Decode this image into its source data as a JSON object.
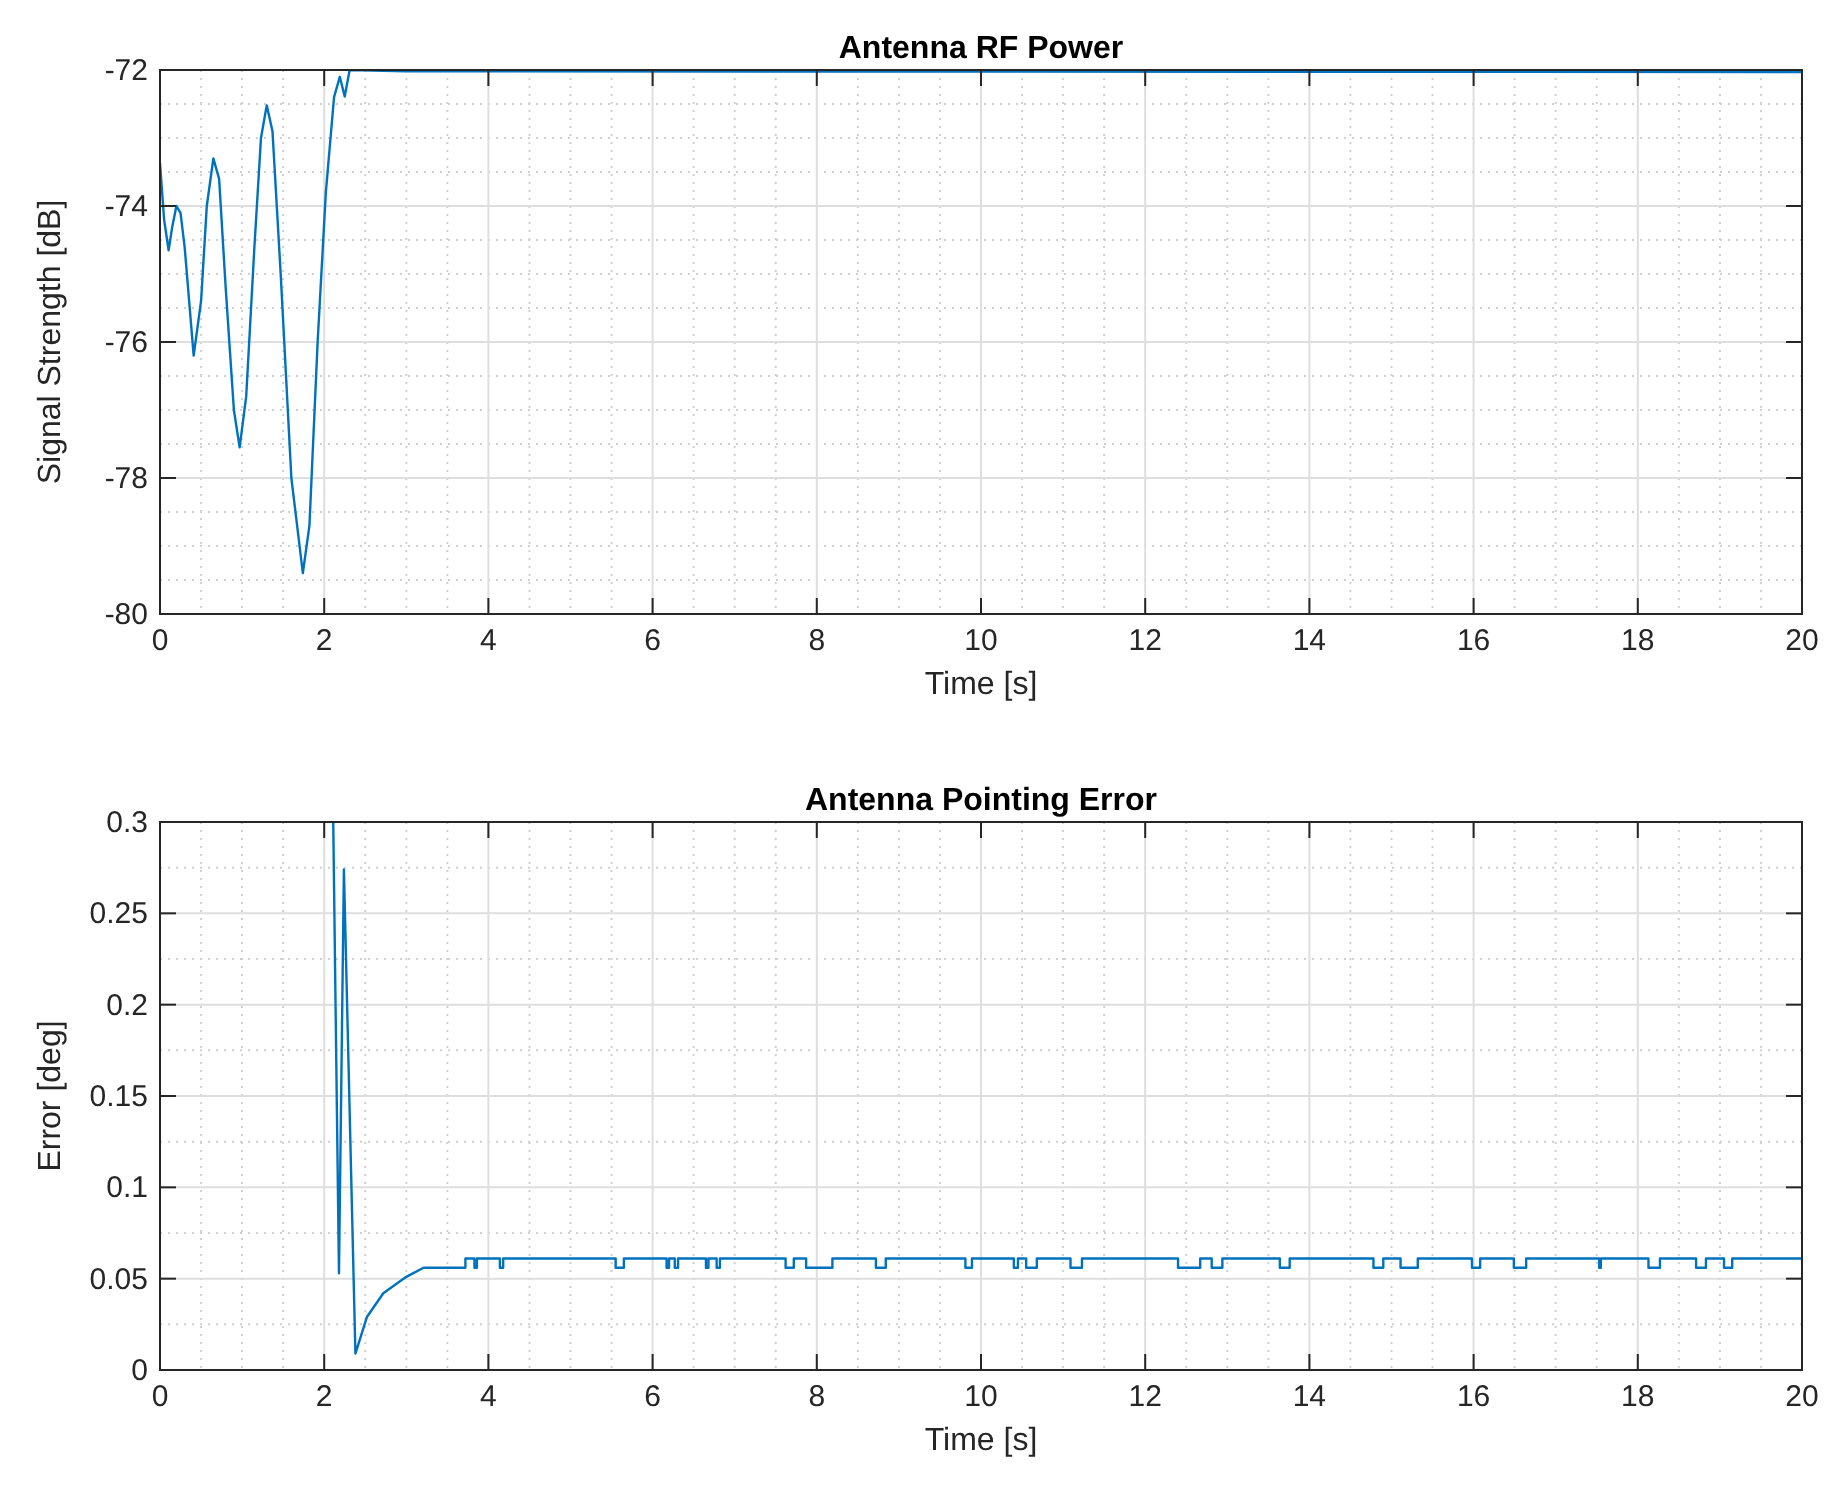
{
  "chart_data": [
    {
      "type": "line",
      "title": "Antenna RF Power",
      "xlabel": "Time [s]",
      "ylabel": "Signal Strength [dB]",
      "xlim": [
        0,
        20
      ],
      "xticks": [
        0,
        2,
        4,
        6,
        8,
        10,
        12,
        14,
        16,
        18,
        20
      ],
      "ylim": [
        -80,
        -72
      ],
      "yticks": [
        -80,
        -78,
        -76,
        -74,
        -72
      ],
      "grid": true,
      "series": [
        {
          "color": "#0072bd",
          "x": [
            0,
            0.05,
            0.105,
            0.15,
            0.2,
            0.25,
            0.3,
            0.41,
            0.5,
            0.57,
            0.65,
            0.72,
            0.8,
            0.9,
            0.97,
            1.05,
            1.15,
            1.23,
            1.3,
            1.37,
            1.47,
            1.6,
            1.74,
            1.82,
            1.92,
            2.02,
            2.12,
            2.19,
            2.25,
            2.31,
            3,
            20
          ],
          "values": [
            -73.37,
            -74.2,
            -74.65,
            -74.3,
            -74.0,
            -74.1,
            -74.6,
            -76.2,
            -75.4,
            -74.0,
            -73.3,
            -73.6,
            -75.2,
            -77.0,
            -77.55,
            -76.8,
            -74.6,
            -73.0,
            -72.52,
            -72.9,
            -75.0,
            -78.0,
            -79.4,
            -78.7,
            -76.0,
            -73.8,
            -72.4,
            -72.1,
            -72.39,
            -72.0,
            -72.02,
            -72.03
          ]
        }
      ]
    },
    {
      "type": "line",
      "title": "Antenna Pointing Error",
      "xlabel": "Time [s]",
      "ylabel": "Error [deg]",
      "xlim": [
        0,
        20
      ],
      "xticks": [
        0,
        2,
        4,
        6,
        8,
        10,
        12,
        14,
        16,
        18,
        20
      ],
      "ylim": [
        0,
        0.3
      ],
      "yticks": [
        0,
        0.05,
        0.1,
        0.15,
        0.2,
        0.25,
        0.3
      ],
      "grid": true,
      "series": [
        {
          "color": "#0072bd",
          "x": [
            2.11,
            2.18,
            2.24,
            2.38,
            2.52,
            2.72,
            3.0,
            3.21,
            3.72,
            3.72,
            3.83,
            3.83,
            3.86,
            3.86,
            4.14,
            4.14,
            4.18,
            4.18,
            5.55,
            5.55,
            5.65,
            5.65,
            6.17,
            6.17,
            6.2,
            6.2,
            6.27,
            6.27,
            6.31,
            6.31,
            6.65,
            6.65,
            6.68,
            6.68,
            6.78,
            6.78,
            6.82,
            6.82,
            7.62,
            7.62,
            7.72,
            7.72,
            7.87,
            7.87,
            8.19,
            8.19,
            8.72,
            8.72,
            8.84,
            8.84,
            9.81,
            9.81,
            9.89,
            9.89,
            10.4,
            10.4,
            10.45,
            10.45,
            10.55,
            10.55,
            10.68,
            10.68,
            11.09,
            11.09,
            11.23,
            11.23,
            12.4,
            12.4,
            12.67,
            12.67,
            12.81,
            12.81,
            12.94,
            12.94,
            13.64,
            13.64,
            13.76,
            13.76,
            14.78,
            14.78,
            14.9,
            14.9,
            15.11,
            15.11,
            15.32,
            15.32,
            15.98,
            15.98,
            16.08,
            16.08,
            16.49,
            16.49,
            16.64,
            16.64,
            17.53,
            17.53,
            17.55,
            17.55,
            18.13,
            18.13,
            18.27,
            18.27,
            18.71,
            18.71,
            18.83,
            18.83,
            19.05,
            19.05,
            19.15,
            19.15,
            20
          ],
          "values": [
            0.3,
            0.053,
            0.274,
            0.009,
            0.029,
            0.042,
            0.051,
            0.056,
            0.056,
            0.061,
            0.061,
            0.056,
            0.056,
            0.061,
            0.061,
            0.056,
            0.056,
            0.061,
            0.061,
            0.056,
            0.056,
            0.061,
            0.061,
            0.056,
            0.056,
            0.061,
            0.061,
            0.056,
            0.056,
            0.061,
            0.061,
            0.056,
            0.056,
            0.061,
            0.061,
            0.056,
            0.056,
            0.061,
            0.061,
            0.056,
            0.056,
            0.061,
            0.061,
            0.056,
            0.056,
            0.061,
            0.061,
            0.056,
            0.056,
            0.061,
            0.061,
            0.056,
            0.056,
            0.061,
            0.061,
            0.056,
            0.056,
            0.061,
            0.061,
            0.056,
            0.056,
            0.061,
            0.061,
            0.056,
            0.056,
            0.061,
            0.061,
            0.056,
            0.056,
            0.061,
            0.061,
            0.056,
            0.056,
            0.061,
            0.061,
            0.056,
            0.056,
            0.061,
            0.061,
            0.056,
            0.056,
            0.061,
            0.061,
            0.056,
            0.056,
            0.061,
            0.061,
            0.056,
            0.056,
            0.061,
            0.061,
            0.056,
            0.056,
            0.061,
            0.061,
            0.056,
            0.056,
            0.061,
            0.061,
            0.056,
            0.056,
            0.061,
            0.061,
            0.056,
            0.056,
            0.061,
            0.061,
            0.056,
            0.056,
            0.061,
            0.061
          ]
        }
      ]
    }
  ]
}
